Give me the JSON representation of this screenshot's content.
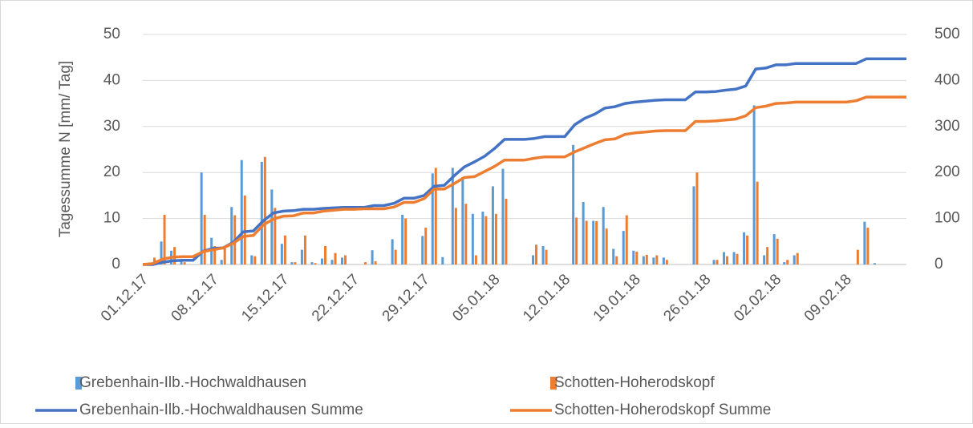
{
  "chart_data": {
    "type": "bar",
    "y_label": "Tagessumme N [mm/ Tag]",
    "categories": [
      "01.12.17",
      null,
      null,
      null,
      null,
      null,
      null,
      "08.12.17",
      null,
      null,
      null,
      null,
      null,
      null,
      "15.12.17",
      null,
      null,
      null,
      null,
      null,
      null,
      "22.12.17",
      null,
      null,
      null,
      null,
      null,
      null,
      "29.12.17",
      null,
      null,
      null,
      null,
      null,
      null,
      "05.01.18",
      null,
      null,
      null,
      null,
      null,
      null,
      "12.01.18",
      null,
      null,
      null,
      null,
      null,
      null,
      "19.01.18",
      null,
      null,
      null,
      null,
      null,
      null,
      "26.01.18",
      null,
      null,
      null,
      null,
      null,
      null,
      "02.02.18",
      null,
      null,
      null,
      null,
      null,
      null,
      "09.02.18",
      null,
      null,
      null,
      null,
      null,
      null
    ],
    "ylim": [
      0,
      50
    ],
    "yticks": [
      0,
      10,
      20,
      30,
      40,
      50
    ],
    "y2lim": [
      0,
      500
    ],
    "y2ticks": [
      0,
      100,
      200,
      300,
      400,
      500
    ],
    "grid": true,
    "series": [
      {
        "name": "Grebenhain-Ilb.-Hochwaldhausen",
        "type": "bar",
        "color": "#5b9bd5",
        "values": [
          0,
          0,
          5,
          3,
          1,
          0,
          20,
          5.8,
          1,
          12.5,
          22.7,
          2,
          22.3,
          16.3,
          4.5,
          0.5,
          3.2,
          0.5,
          1.3,
          1,
          1.5,
          0,
          0,
          3.1,
          0,
          5.5,
          10.8,
          0,
          6.2,
          19.8,
          1.6,
          21,
          19,
          11,
          11.5,
          17,
          20.8,
          0,
          0,
          2,
          4,
          0,
          0,
          26,
          13.6,
          9.5,
          12.5,
          3.4,
          7.3,
          3,
          1.8,
          1.5,
          1.5,
          0,
          0,
          17,
          0,
          1,
          2.7,
          2.7,
          7,
          34.6,
          2,
          6.6,
          0.5,
          2,
          0,
          0,
          0,
          0,
          0,
          0,
          9.3,
          0.3,
          0,
          0,
          0
        ]
      },
      {
        "name": "Schotten-Hoherodskopf",
        "type": "bar",
        "color": "#ed7d31",
        "values": [
          0,
          1.5,
          10.8,
          3.8,
          0.5,
          0,
          10.8,
          4,
          4,
          10.7,
          15,
          1.8,
          23.4,
          12.3,
          6.3,
          0.5,
          6.3,
          0.3,
          4,
          2.5,
          2,
          0,
          0.5,
          0.7,
          0,
          3.2,
          10,
          0,
          8,
          21,
          0,
          12.3,
          13.2,
          2,
          10.5,
          11,
          14.3,
          0,
          0,
          4.3,
          3.2,
          0,
          0,
          10.2,
          9.5,
          9.4,
          7.8,
          1.8,
          10.7,
          2.8,
          2.1,
          2,
          1,
          0,
          0,
          20,
          0,
          1,
          1.8,
          2.3,
          6.3,
          18,
          3.8,
          5.6,
          1,
          2.5,
          0,
          0,
          0,
          0,
          0,
          3.2,
          8,
          0,
          0,
          0,
          0
        ]
      },
      {
        "name": "Grebenhain-Ilb.-Hochwaldhausen Summe",
        "type": "line",
        "axis": "y2",
        "color": "#4472c4",
        "values": [
          0,
          0,
          5,
          8,
          9,
          9,
          29,
          35,
          36,
          48,
          71,
          73,
          95,
          112,
          116,
          117,
          120,
          120,
          122,
          123,
          124,
          124,
          124,
          128,
          128,
          133,
          144,
          144,
          150,
          170,
          172,
          193,
          212,
          223,
          235,
          252,
          272,
          272,
          272,
          274,
          278,
          278,
          278,
          304,
          318,
          327,
          340,
          343,
          350,
          353,
          355,
          357,
          358,
          358,
          358,
          375,
          375,
          376,
          379,
          381,
          388,
          425,
          427,
          434,
          434,
          437,
          437,
          437,
          437,
          437,
          437,
          437,
          447,
          447,
          447,
          447,
          447
        ]
      },
      {
        "name": "Schotten-Hoherodskopf Summe",
        "type": "line",
        "axis": "y2",
        "color": "#ed7d31",
        "values": [
          0,
          2,
          12,
          16,
          17,
          17,
          28,
          32,
          36,
          46,
          61,
          63,
          86,
          99,
          105,
          106,
          112,
          112,
          116,
          118,
          120,
          120,
          121,
          121,
          121,
          125,
          135,
          135,
          143,
          164,
          164,
          176,
          189,
          191,
          202,
          213,
          227,
          227,
          227,
          231,
          234,
          234,
          234,
          245,
          254,
          263,
          271,
          273,
          283,
          286,
          288,
          290,
          291,
          291,
          291,
          311,
          311,
          312,
          314,
          316,
          323,
          341,
          344,
          350,
          351,
          353,
          353,
          353,
          353,
          353,
          353,
          356,
          364,
          364,
          364,
          364,
          364
        ]
      }
    ]
  }
}
